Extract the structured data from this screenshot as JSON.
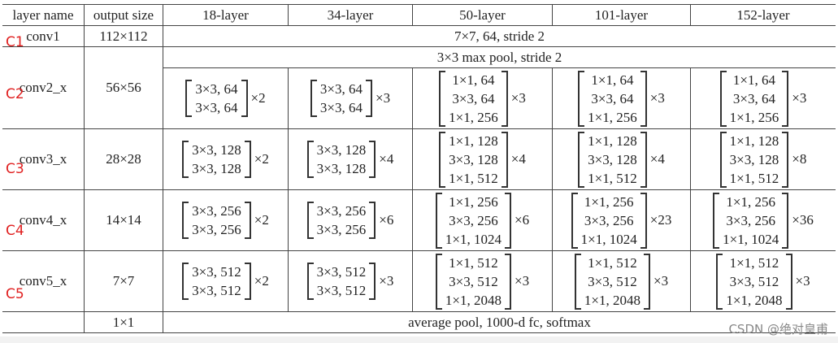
{
  "headers": [
    "layer name",
    "output size",
    "18-layer",
    "34-layer",
    "50-layer",
    "101-layer",
    "152-layer"
  ],
  "conv1": {
    "name": "conv1",
    "size": "112×112",
    "spec": "7×7, 64, stride 2"
  },
  "maxpool": "3×3 max pool, stride 2",
  "stages": [
    {
      "name": "conv2_x",
      "size": "56×56",
      "blocks": [
        {
          "lines": [
            "3×3, 64",
            "3×3, 64"
          ],
          "rep": "×2"
        },
        {
          "lines": [
            "3×3, 64",
            "3×3, 64"
          ],
          "rep": "×3"
        },
        {
          "lines": [
            "1×1, 64",
            "3×3, 64",
            "1×1, 256"
          ],
          "rep": "×3"
        },
        {
          "lines": [
            "1×1, 64",
            "3×3, 64",
            "1×1, 256"
          ],
          "rep": "×3"
        },
        {
          "lines": [
            "1×1, 64",
            "3×3, 64",
            "1×1, 256"
          ],
          "rep": "×3"
        }
      ]
    },
    {
      "name": "conv3_x",
      "size": "28×28",
      "blocks": [
        {
          "lines": [
            "3×3, 128",
            "3×3, 128"
          ],
          "rep": "×2"
        },
        {
          "lines": [
            "3×3, 128",
            "3×3, 128"
          ],
          "rep": "×4"
        },
        {
          "lines": [
            "1×1, 128",
            "3×3, 128",
            "1×1, 512"
          ],
          "rep": "×4"
        },
        {
          "lines": [
            "1×1, 128",
            "3×3, 128",
            "1×1, 512"
          ],
          "rep": "×4"
        },
        {
          "lines": [
            "1×1, 128",
            "3×3, 128",
            "1×1, 512"
          ],
          "rep": "×8"
        }
      ]
    },
    {
      "name": "conv4_x",
      "size": "14×14",
      "blocks": [
        {
          "lines": [
            "3×3, 256",
            "3×3, 256"
          ],
          "rep": "×2"
        },
        {
          "lines": [
            "3×3, 256",
            "3×3, 256"
          ],
          "rep": "×6"
        },
        {
          "lines": [
            "1×1, 256",
            "3×3, 256",
            "1×1, 1024"
          ],
          "rep": "×6"
        },
        {
          "lines": [
            "1×1, 256",
            "3×3, 256",
            "1×1, 1024"
          ],
          "rep": "×23"
        },
        {
          "lines": [
            "1×1, 256",
            "3×3, 256",
            "1×1, 1024"
          ],
          "rep": "×36"
        }
      ]
    },
    {
      "name": "conv5_x",
      "size": "7×7",
      "blocks": [
        {
          "lines": [
            "3×3, 512",
            "3×3, 512"
          ],
          "rep": "×2"
        },
        {
          "lines": [
            "3×3, 512",
            "3×3, 512"
          ],
          "rep": "×3"
        },
        {
          "lines": [
            "1×1, 512",
            "3×3, 512",
            "1×1, 2048"
          ],
          "rep": "×3"
        },
        {
          "lines": [
            "1×1, 512",
            "3×3, 512",
            "1×1, 2048"
          ],
          "rep": "×3"
        },
        {
          "lines": [
            "1×1, 512",
            "3×3, 512",
            "1×1, 2048"
          ],
          "rep": "×3"
        }
      ]
    }
  ],
  "final": {
    "name": "",
    "size": "1×1",
    "spec": "average pool, 1000-d fc, softmax"
  },
  "annotations": [
    "C1",
    "C2",
    "C3",
    "C4",
    "C5"
  ],
  "annotation_color": "#e02020",
  "watermark": "CSDN @绝对皇甫"
}
